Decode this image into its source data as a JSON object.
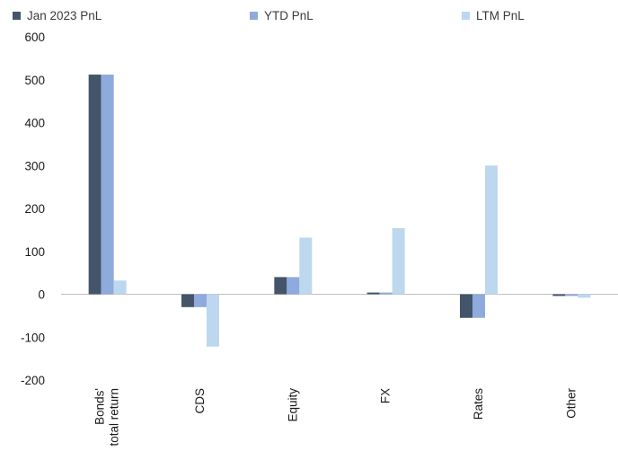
{
  "chart_data": {
    "type": "bar",
    "title": "",
    "xlabel": "",
    "ylabel": "",
    "ylim": [
      -200,
      600
    ],
    "yticks": [
      600,
      500,
      400,
      300,
      200,
      100,
      0,
      -100,
      -200
    ],
    "categories": [
      [
        "Bonds'",
        "total return"
      ],
      [
        "CDS"
      ],
      [
        "Equity"
      ],
      [
        "FX"
      ],
      [
        "Rates"
      ],
      [
        "Other"
      ]
    ],
    "series": [
      {
        "name": "Jan 2023 PnL",
        "color": "#44546a",
        "values": [
          512,
          -30,
          40,
          4,
          -55,
          -4
        ]
      },
      {
        "name": "YTD PnL",
        "color": "#8faadc",
        "values": [
          512,
          -30,
          40,
          4,
          -55,
          -4
        ]
      },
      {
        "name": "LTM PnL",
        "color": "#bdd7ee",
        "values": [
          32,
          -122,
          132,
          154,
          300,
          -8
        ]
      }
    ],
    "grid": false,
    "legend_position": "top"
  }
}
